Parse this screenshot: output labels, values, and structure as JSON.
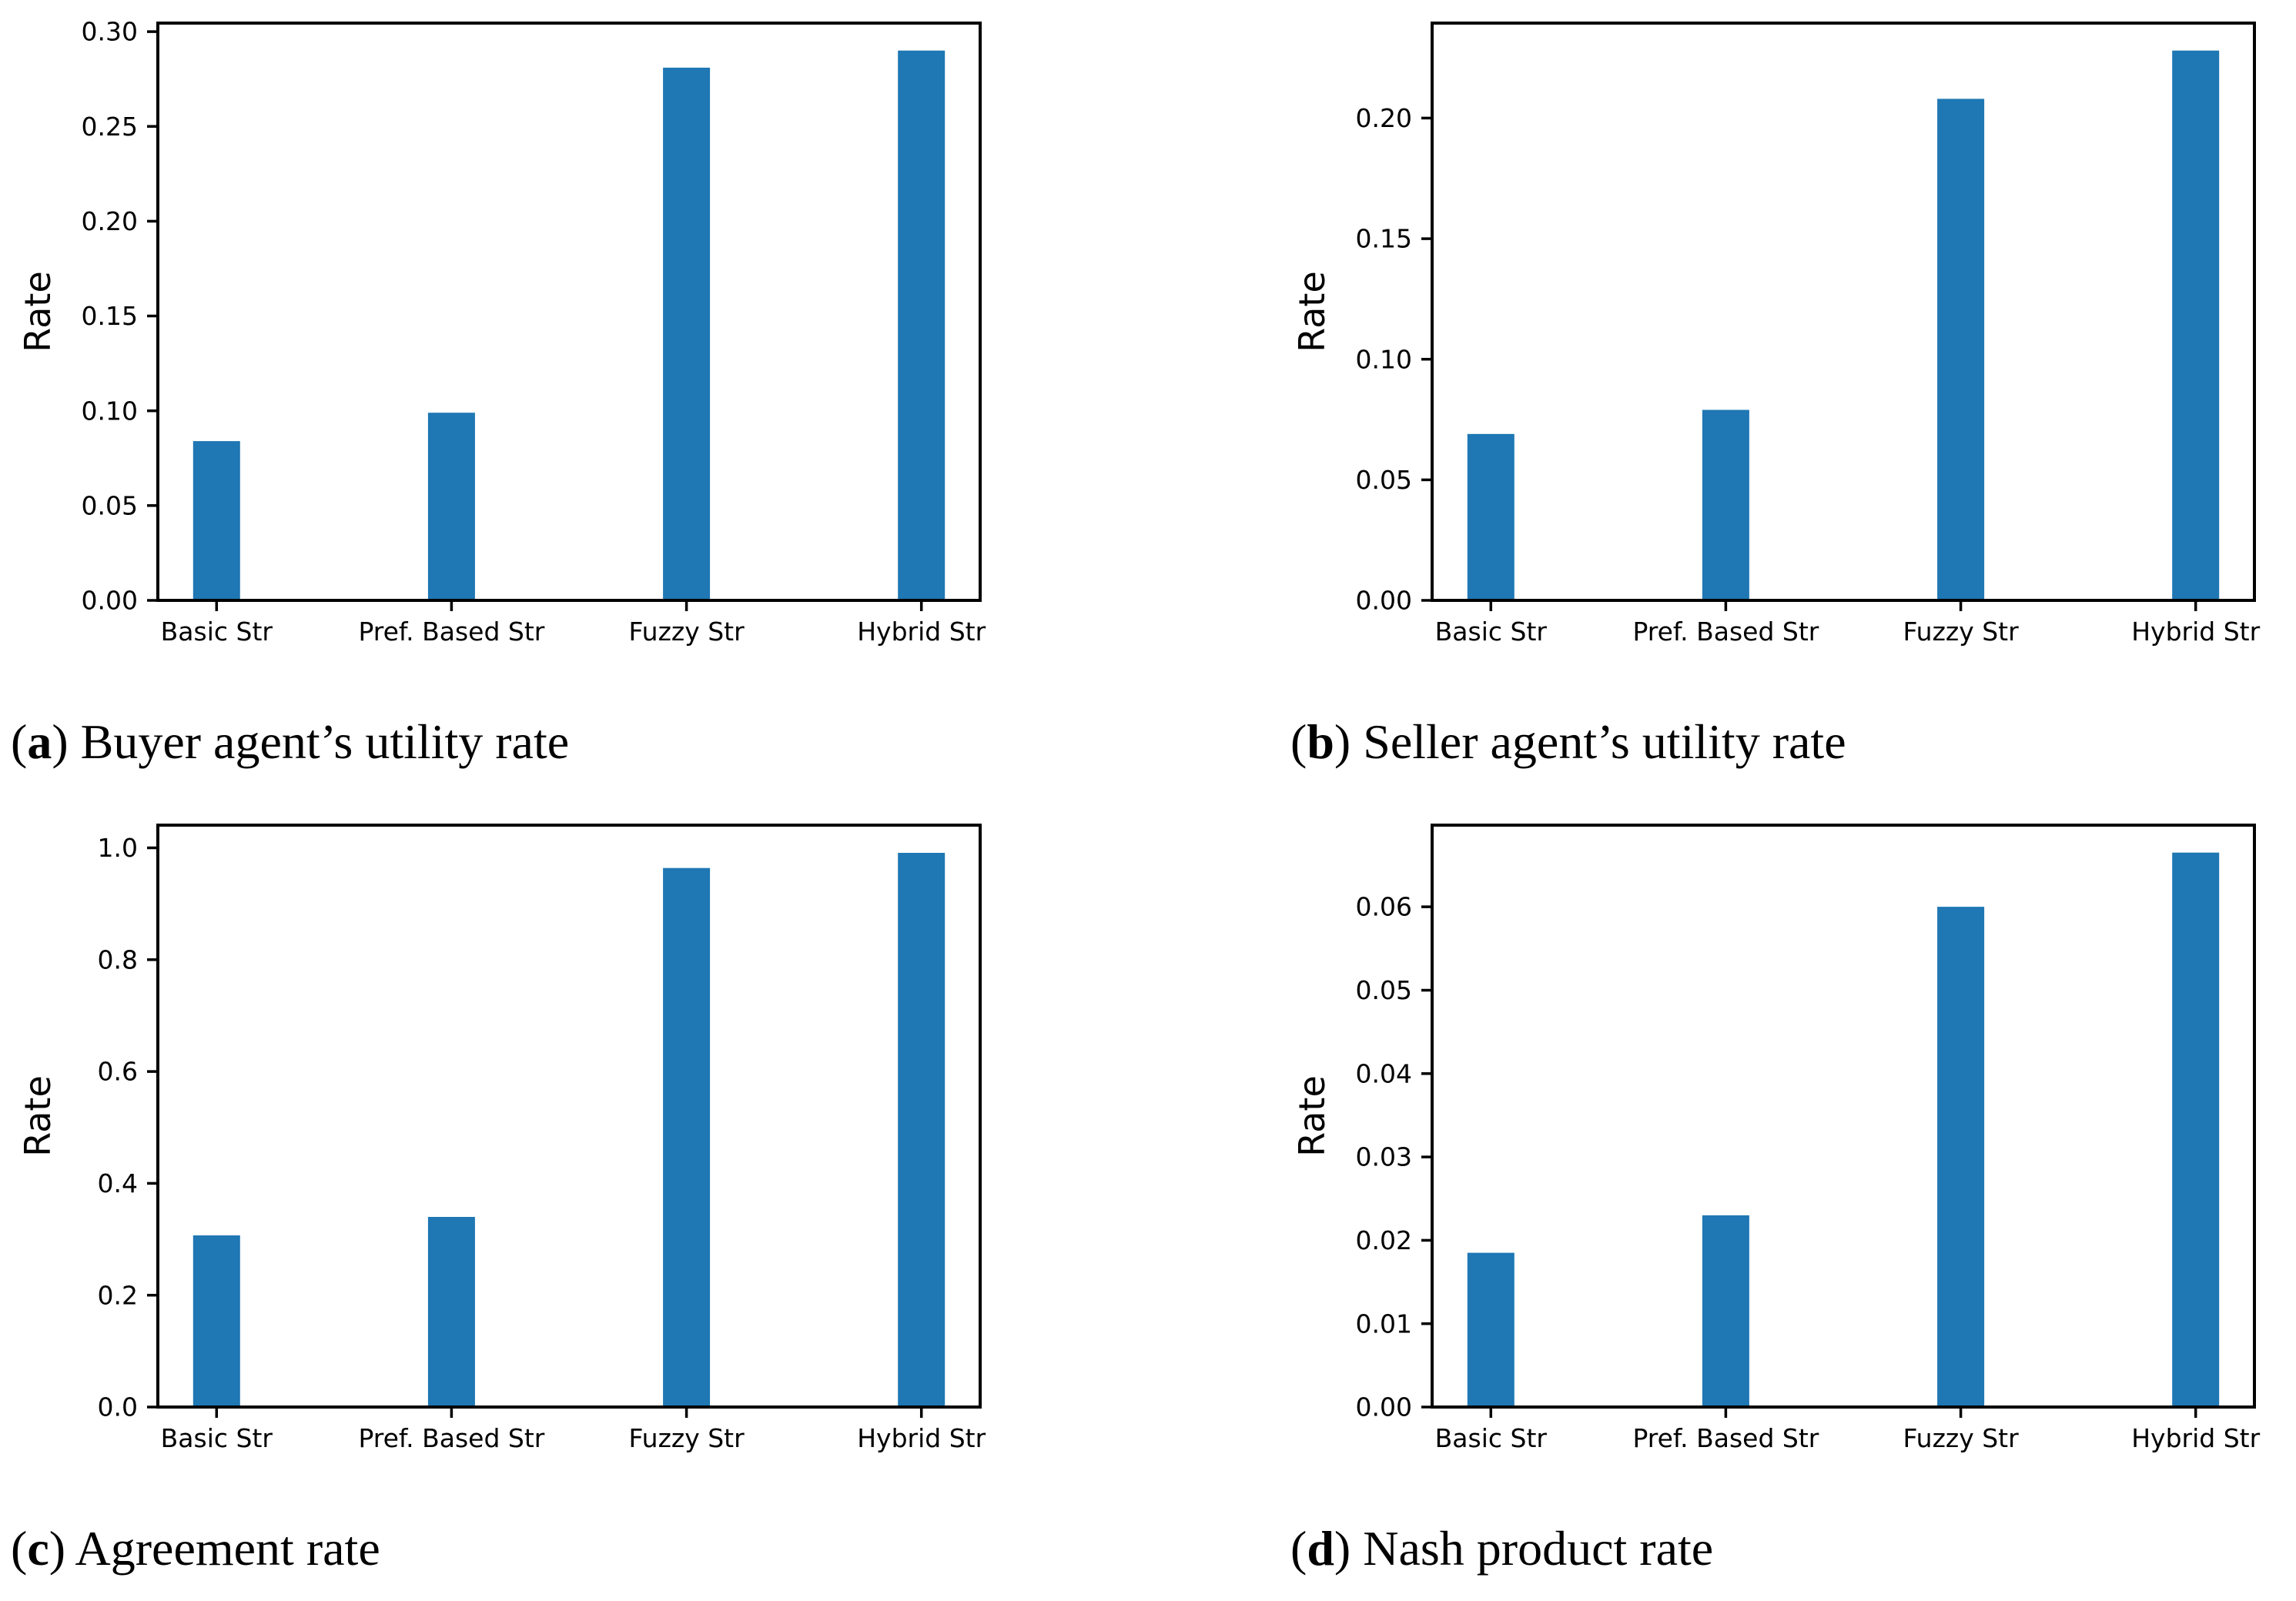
{
  "page": {
    "background_color": "#ffffff",
    "text_color": "#000000"
  },
  "bar_color": "#1f77b4",
  "axis_color": "#000000",
  "chart_data": [
    {
      "type": "bar",
      "panel": "a",
      "caption": {
        "open": "(",
        "letter": "a",
        "close": ") ",
        "text": "Buyer agent’s utility rate"
      },
      "title": "",
      "xlabel": "",
      "ylabel": "Rate",
      "categories": [
        "Basic Str",
        "Pref. Based Str",
        "Fuzzy Str",
        "Hybrid Str"
      ],
      "values": [
        0.084,
        0.099,
        0.281,
        0.29
      ],
      "yticks": [
        0.0,
        0.05,
        0.1,
        0.15,
        0.2,
        0.25,
        0.3
      ],
      "ytick_labels": [
        "0.00",
        "0.05",
        "0.10",
        "0.15",
        "0.20",
        "0.25",
        "0.30"
      ],
      "ylim": [
        0,
        0.3045
      ],
      "xlim_slots": [
        -0.25,
        3.25
      ],
      "bar_width_slots": 0.2,
      "grid": false,
      "legend": "none"
    },
    {
      "type": "bar",
      "panel": "b",
      "caption": {
        "open": "(",
        "letter": "b",
        "close": ") ",
        "text": "Seller agent’s utility rate"
      },
      "title": "",
      "xlabel": "",
      "ylabel": "Rate",
      "categories": [
        "Basic Str",
        "Pref. Based Str",
        "Fuzzy Str",
        "Hybrid Str"
      ],
      "values": [
        0.069,
        0.079,
        0.208,
        0.228
      ],
      "yticks": [
        0.0,
        0.05,
        0.1,
        0.15,
        0.2
      ],
      "ytick_labels": [
        "0.00",
        "0.05",
        "0.10",
        "0.15",
        "0.20"
      ],
      "ylim": [
        0,
        0.2394
      ],
      "xlim_slots": [
        -0.25,
        3.25
      ],
      "bar_width_slots": 0.2,
      "grid": false,
      "legend": "none"
    },
    {
      "type": "bar",
      "panel": "c",
      "caption": {
        "open": "(",
        "letter": "c",
        "close": ") ",
        "text": "Agreement rate"
      },
      "title": "",
      "xlabel": "",
      "ylabel": "Rate",
      "categories": [
        "Basic Str",
        "Pref. Based Str",
        "Fuzzy Str",
        "Hybrid Str"
      ],
      "values": [
        0.307,
        0.34,
        0.964,
        0.991
      ],
      "yticks": [
        0.0,
        0.2,
        0.4,
        0.6,
        0.8,
        1.0
      ],
      "ytick_labels": [
        "0.0",
        "0.2",
        "0.4",
        "0.6",
        "0.8",
        "1.0"
      ],
      "ylim": [
        0,
        1.0406
      ],
      "xlim_slots": [
        -0.25,
        3.25
      ],
      "bar_width_slots": 0.2,
      "grid": false,
      "legend": "none"
    },
    {
      "type": "bar",
      "panel": "d",
      "caption": {
        "open": "(",
        "letter": "d",
        "close": ") ",
        "text": "Nash product rate"
      },
      "title": "",
      "xlabel": "",
      "ylabel": "Rate",
      "categories": [
        "Basic Str",
        "Pref. Based Str",
        "Fuzzy Str",
        "Hybrid Str"
      ],
      "values": [
        0.0185,
        0.023,
        0.06,
        0.0665
      ],
      "yticks": [
        0.0,
        0.01,
        0.02,
        0.03,
        0.04,
        0.05,
        0.06
      ],
      "ytick_labels": [
        "0.00",
        "0.01",
        "0.02",
        "0.03",
        "0.04",
        "0.05",
        "0.06"
      ],
      "ylim": [
        0,
        0.0698
      ],
      "xlim_slots": [
        -0.25,
        3.25
      ],
      "bar_width_slots": 0.2,
      "grid": false,
      "legend": "none"
    }
  ]
}
